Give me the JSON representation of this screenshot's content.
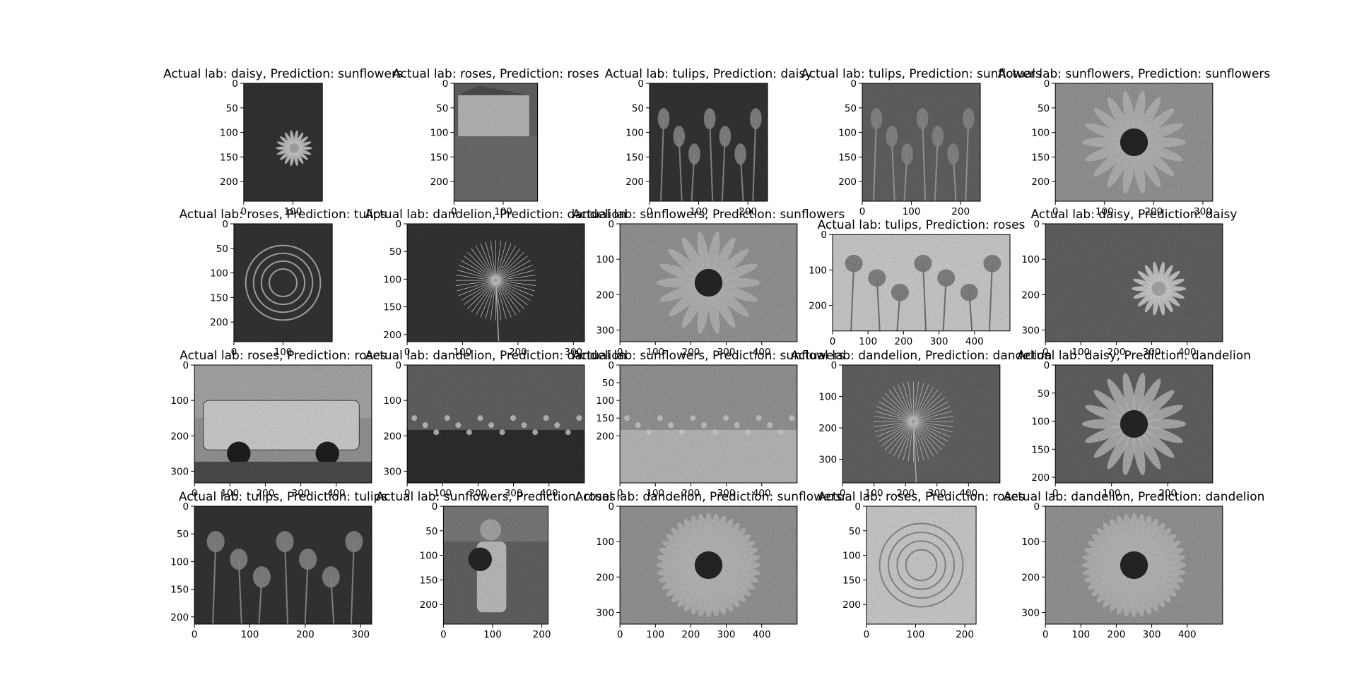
{
  "figure": {
    "background": "#ffffff",
    "image_style": "grayscale"
  },
  "chart_data": [
    {
      "type": "image",
      "title": "Actual lab: daisy, Prediction: sunflowers",
      "actual": "daisy",
      "prediction": "sunflowers",
      "image_width": 160,
      "image_height": 240,
      "xticks": [
        0,
        100
      ],
      "yticks": [
        0,
        50,
        100,
        150,
        200
      ],
      "subject": "daisy",
      "tone": "dark"
    },
    {
      "type": "image",
      "title": "Actual lab: roses, Prediction: roses",
      "actual": "roses",
      "prediction": "roses",
      "image_width": 170,
      "image_height": 240,
      "xticks": [
        0,
        100
      ],
      "yticks": [
        0,
        50,
        100,
        150,
        200
      ],
      "subject": "house",
      "tone": "mid"
    },
    {
      "type": "image",
      "title": "Actual lab: tulips, Prediction: daisy",
      "actual": "tulips",
      "prediction": "daisy",
      "image_width": 240,
      "image_height": 240,
      "xticks": [
        0,
        100,
        200
      ],
      "yticks": [
        0,
        50,
        100,
        150,
        200
      ],
      "subject": "tulips",
      "tone": "dark"
    },
    {
      "type": "image",
      "title": "Actual lab: tulips, Prediction: sunflowers",
      "actual": "tulips",
      "prediction": "sunflowers",
      "image_width": 240,
      "image_height": 240,
      "xticks": [
        0,
        100,
        200
      ],
      "yticks": [
        0,
        50,
        100,
        150,
        200
      ],
      "subject": "tulips",
      "tone": "mid"
    },
    {
      "type": "image",
      "title": "Actual lab: sunflowers, Prediction: sunflowers",
      "actual": "sunflowers",
      "prediction": "sunflowers",
      "image_width": 320,
      "image_height": 240,
      "xticks": [
        0,
        100,
        200,
        300
      ],
      "yticks": [
        0,
        50,
        100,
        150,
        200
      ],
      "subject": "sunflower",
      "tone": "light"
    },
    {
      "type": "image",
      "title": "Actual lab: roses, Prediction: tulips",
      "actual": "roses",
      "prediction": "tulips",
      "image_width": 200,
      "image_height": 240,
      "xticks": [
        0,
        100
      ],
      "yticks": [
        0,
        50,
        100,
        150,
        200
      ],
      "subject": "rose",
      "tone": "dark"
    },
    {
      "type": "image",
      "title": "Actual lab: dandelion, Prediction: dandelion",
      "actual": "dandelion",
      "prediction": "dandelion",
      "image_width": 320,
      "image_height": 213,
      "xticks": [
        0,
        100,
        200,
        300
      ],
      "yticks": [
        0,
        50,
        100,
        150,
        200
      ],
      "subject": "dandelion-seed",
      "tone": "dark"
    },
    {
      "type": "image",
      "title": "Actual lab: sunflowers, Prediction: sunflowers",
      "actual": "sunflowers",
      "prediction": "sunflowers",
      "image_width": 500,
      "image_height": 333,
      "xticks": [
        0,
        100,
        200,
        300,
        400
      ],
      "yticks": [
        0,
        100,
        200,
        300
      ],
      "subject": "sunflower",
      "tone": "light"
    },
    {
      "type": "image",
      "title": "Actual lab: tulips, Prediction: roses",
      "actual": "tulips",
      "prediction": "roses",
      "image_width": 500,
      "image_height": 272,
      "xticks": [
        0,
        100,
        200,
        300,
        400
      ],
      "yticks": [
        0,
        100,
        200
      ],
      "subject": "tulips",
      "tone": "white"
    },
    {
      "type": "image",
      "title": "Actual lab: daisy, Prediction: daisy",
      "actual": "daisy",
      "prediction": "daisy",
      "image_width": 500,
      "image_height": 333,
      "xticks": [
        0,
        100,
        200,
        300,
        400
      ],
      "yticks": [
        0,
        100,
        200,
        300
      ],
      "subject": "daisy",
      "tone": "mid"
    },
    {
      "type": "image",
      "title": "Actual lab: roses, Prediction: roses",
      "actual": "roses",
      "prediction": "roses",
      "image_width": 500,
      "image_height": 333,
      "xticks": [
        0,
        100,
        200,
        300,
        400
      ],
      "yticks": [
        0,
        100,
        200,
        300
      ],
      "subject": "car",
      "tone": "light"
    },
    {
      "type": "image",
      "title": "Actual lab: dandelion, Prediction: dandelion",
      "actual": "dandelion",
      "prediction": "dandelion",
      "image_width": 500,
      "image_height": 333,
      "xticks": [
        0,
        100,
        200,
        300,
        400
      ],
      "yticks": [
        0,
        100,
        200,
        300
      ],
      "subject": "meadow",
      "tone": "mid"
    },
    {
      "type": "image",
      "title": "Actual lab: sunflowers, Prediction: sunflowers",
      "actual": "sunflowers",
      "prediction": "sunflowers",
      "image_width": 500,
      "image_height": 333,
      "xticks": [
        0,
        100,
        200,
        300,
        400
      ],
      "yticks": [
        0,
        50,
        100,
        150,
        200
      ],
      "subject": "field",
      "tone": "light"
    },
    {
      "type": "image",
      "title": "Actual lab: dandelion, Prediction: dandelion",
      "actual": "dandelion",
      "prediction": "dandelion",
      "image_width": 500,
      "image_height": 375,
      "xticks": [
        0,
        100,
        200,
        300,
        400
      ],
      "yticks": [
        0,
        100,
        200,
        300
      ],
      "subject": "dandelion-seed",
      "tone": "mid"
    },
    {
      "type": "image",
      "title": "Actual lab: daisy, Prediction: dandelion",
      "actual": "daisy",
      "prediction": "dandelion",
      "image_width": 280,
      "image_height": 210,
      "xticks": [
        0,
        100,
        200
      ],
      "yticks": [
        0,
        50,
        100,
        150,
        200
      ],
      "subject": "petals",
      "tone": "mid"
    },
    {
      "type": "image",
      "title": "Actual lab: tulips, Prediction: tulips",
      "actual": "tulips",
      "prediction": "tulips",
      "image_width": 320,
      "image_height": 213,
      "xticks": [
        0,
        100,
        200,
        300
      ],
      "yticks": [
        0,
        50,
        100,
        150,
        200
      ],
      "subject": "tulips",
      "tone": "dark"
    },
    {
      "type": "image",
      "title": "Actual lab: sunflowers, Prediction: roses",
      "actual": "sunflowers",
      "prediction": "roses",
      "image_width": 213,
      "image_height": 240,
      "xticks": [
        0,
        100,
        200
      ],
      "yticks": [
        0,
        50,
        100,
        150,
        200
      ],
      "subject": "person",
      "tone": "mid"
    },
    {
      "type": "image",
      "title": "Actual lab: dandelion, Prediction: sunflowers",
      "actual": "dandelion",
      "prediction": "sunflowers",
      "image_width": 500,
      "image_height": 333,
      "xticks": [
        0,
        100,
        200,
        300,
        400
      ],
      "yticks": [
        0,
        100,
        200,
        300
      ],
      "subject": "dandelion-bloom",
      "tone": "light"
    },
    {
      "type": "image",
      "title": "Actual lab: roses, Prediction: roses",
      "actual": "roses",
      "prediction": "roses",
      "image_width": 223,
      "image_height": 240,
      "xticks": [
        0,
        100,
        200
      ],
      "yticks": [
        0,
        50,
        100,
        150,
        200
      ],
      "subject": "rose",
      "tone": "white"
    },
    {
      "type": "image",
      "title": "Actual lab: dandelion, Prediction: dandelion",
      "actual": "dandelion",
      "prediction": "dandelion",
      "image_width": 500,
      "image_height": 333,
      "xticks": [
        0,
        100,
        200,
        300,
        400
      ],
      "yticks": [
        0,
        100,
        200,
        300
      ],
      "subject": "dandelion-bloom",
      "tone": "light"
    }
  ]
}
